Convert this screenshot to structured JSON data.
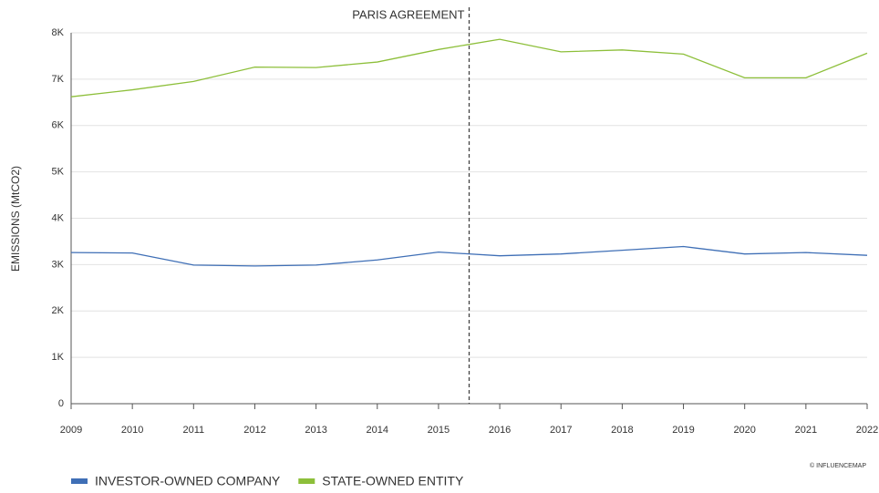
{
  "chart_data": {
    "type": "line",
    "y_label": "EMISSIONS (MtCO2)",
    "source": "© INFLUENCEMAP",
    "x": [
      2009,
      2010,
      2011,
      2012,
      2013,
      2014,
      2015,
      2016,
      2017,
      2018,
      2019,
      2020,
      2021,
      2022
    ],
    "xlim": [
      2009,
      2022
    ],
    "xticks": [
      2009,
      2010,
      2011,
      2012,
      2013,
      2014,
      2015,
      2016,
      2017,
      2018,
      2019,
      2020,
      2021,
      2022
    ],
    "ylim": [
      0,
      8000
    ],
    "yticks": [
      0,
      {
        "value": 1000,
        "label": "1K"
      },
      {
        "value": 2000,
        "label": "2K"
      },
      {
        "value": 3000,
        "label": "3K"
      },
      {
        "value": 4000,
        "label": "4K"
      },
      {
        "value": 5000,
        "label": "5K"
      },
      {
        "value": 6000,
        "label": "6K"
      },
      {
        "value": 7000,
        "label": "7K"
      },
      {
        "value": 8000,
        "label": "8K"
      }
    ],
    "grid": true,
    "legend": "bottom-left",
    "series": [
      {
        "name": "INVESTOR-OWNED COMPANY",
        "color": "#3f6fb6",
        "values": [
          3260,
          3250,
          2990,
          2970,
          2990,
          3100,
          3270,
          3190,
          3230,
          3310,
          3390,
          3230,
          3260,
          3200
        ]
      },
      {
        "name": "STATE-OWNED ENTITY",
        "color": "#8dbf3a",
        "values": [
          6620,
          6770,
          6950,
          7260,
          7250,
          7370,
          7640,
          7860,
          7590,
          7630,
          7540,
          7030,
          7030,
          7560
        ]
      }
    ],
    "annotations": [
      {
        "text": "PARIS AGREEMENT",
        "x": 2015.5
      }
    ]
  }
}
